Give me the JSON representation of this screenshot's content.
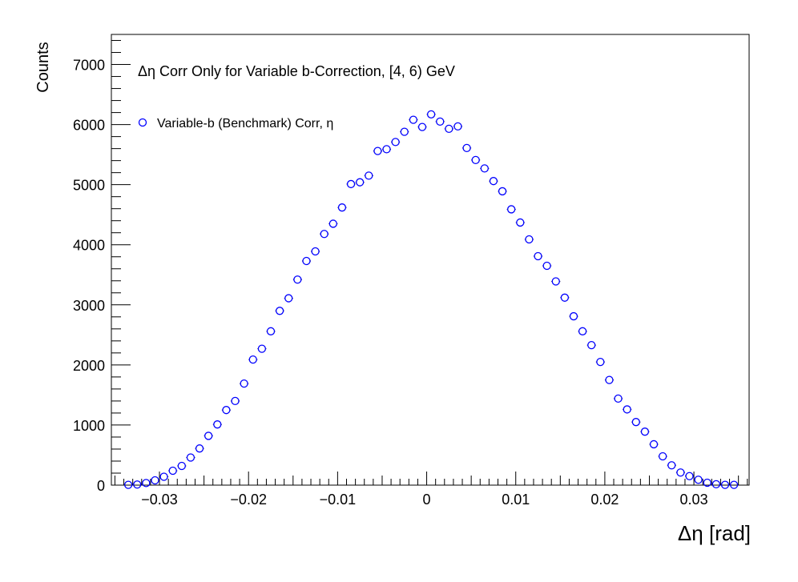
{
  "chart_data": {
    "type": "scatter",
    "title": "Δη Corr Only for Variable b-Correction, [4, 6) GeV",
    "xlabel": "Δη  [rad]",
    "ylabel": "Counts",
    "xlim": [
      -0.0354,
      0.0362
    ],
    "ylim": [
      0,
      7500
    ],
    "x_ticks": [
      -0.03,
      -0.02,
      -0.01,
      0,
      0.01,
      0.02,
      0.03
    ],
    "x_tick_labels": [
      "−0.03",
      "−0.02",
      "−0.01",
      "0",
      "0.01",
      "0.02",
      "0.03"
    ],
    "y_ticks": [
      0,
      1000,
      2000,
      3000,
      4000,
      5000,
      6000,
      7000
    ],
    "y_tick_labels": [
      "0",
      "1000",
      "2000",
      "3000",
      "4000",
      "5000",
      "6000",
      "7000"
    ],
    "grid": false,
    "legend_position": "top-left",
    "marker": "open-circle",
    "marker_color": "#0000ff",
    "series": [
      {
        "name": "Variable-b (Benchmark) Corr, η",
        "x": [
          -0.0335,
          -0.0325,
          -0.0315,
          -0.0305,
          -0.0295,
          -0.0285,
          -0.0275,
          -0.0265,
          -0.0255,
          -0.0245,
          -0.0235,
          -0.0225,
          -0.0215,
          -0.0205,
          -0.0195,
          -0.0185,
          -0.0175,
          -0.0165,
          -0.0155,
          -0.0145,
          -0.0135,
          -0.0125,
          -0.0115,
          -0.0105,
          -0.0095,
          -0.0085,
          -0.0075,
          -0.0065,
          -0.0055,
          -0.0045,
          -0.0035,
          -0.0025,
          -0.0015,
          -0.0005,
          0.0005,
          0.0015,
          0.0025,
          0.0035,
          0.0045,
          0.0055,
          0.0065,
          0.0075,
          0.0085,
          0.0095,
          0.0105,
          0.0115,
          0.0125,
          0.0135,
          0.0145,
          0.0155,
          0.0165,
          0.0175,
          0.0185,
          0.0195,
          0.0205,
          0.0215,
          0.0225,
          0.0235,
          0.0245,
          0.0255,
          0.0265,
          0.0275,
          0.0285,
          0.0295,
          0.0305,
          0.0315,
          0.0325,
          0.0335,
          0.0345
        ],
        "y": [
          5,
          10,
          35,
          80,
          140,
          240,
          320,
          460,
          610,
          820,
          1010,
          1250,
          1400,
          1690,
          2090,
          2270,
          2560,
          2900,
          3110,
          3420,
          3730,
          3890,
          4180,
          4350,
          4620,
          5010,
          5040,
          5150,
          5560,
          5590,
          5710,
          5880,
          6080,
          5960,
          6170,
          6050,
          5930,
          5970,
          5610,
          5410,
          5270,
          5060,
          4890,
          4590,
          4370,
          4090,
          3810,
          3650,
          3390,
          3120,
          2810,
          2560,
          2330,
          2050,
          1750,
          1440,
          1260,
          1050,
          890,
          680,
          480,
          330,
          210,
          150,
          90,
          40,
          15,
          5,
          5
        ]
      }
    ]
  }
}
